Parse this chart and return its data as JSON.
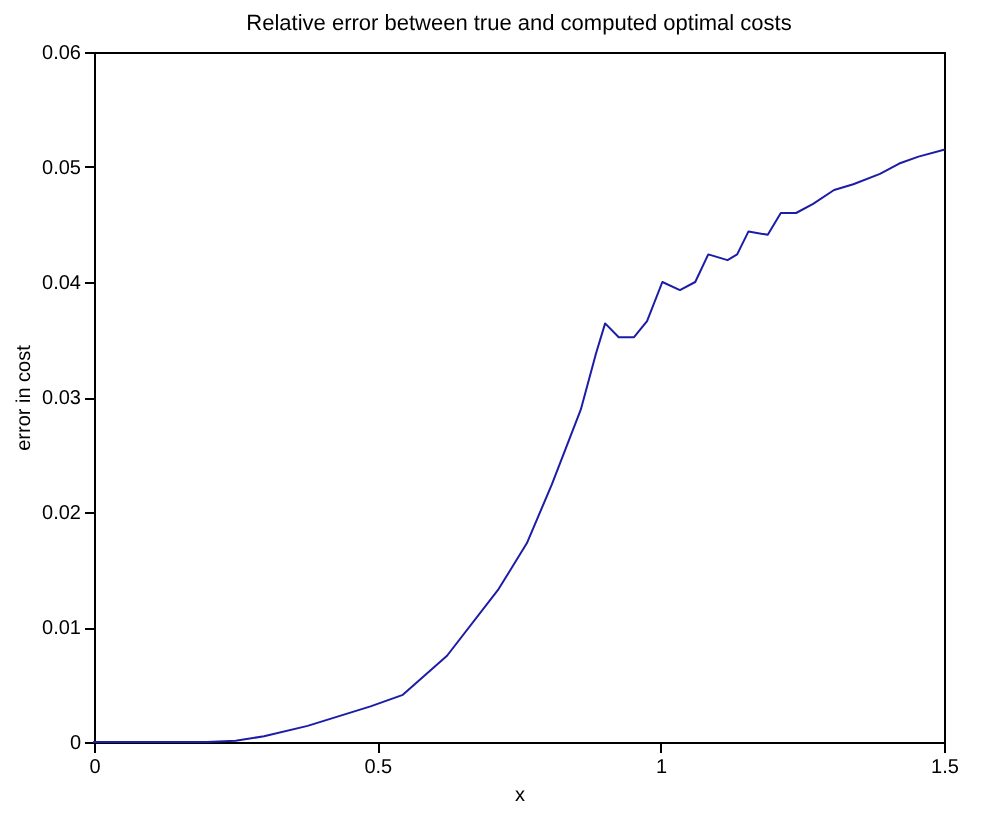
{
  "chart_data": {
    "type": "line",
    "title": "Relative error between true and computed optimal costs",
    "xlabel": "x",
    "ylabel": "error in cost",
    "x": [
      0,
      0.1,
      0.2,
      0.25,
      0.3,
      0.377,
      0.488,
      0.545,
      0.623,
      0.714,
      0.764,
      0.808,
      0.859,
      0.886,
      0.902,
      0.926,
      0.953,
      0.976,
      1.003,
      1.034,
      1.061,
      1.084,
      1.118,
      1.135,
      1.155,
      1.189,
      1.212,
      1.239,
      1.269,
      1.306,
      1.34,
      1.387,
      1.421,
      1.455,
      1.5
    ],
    "series": [
      {
        "color": "#1c1ca8",
        "values": [
          0,
          0,
          0,
          0.0001,
          0.0005,
          0.0014,
          0.0031,
          0.0041,
          0.0075,
          0.0133,
          0.0173,
          0.0224,
          0.0289,
          0.0338,
          0.0364,
          0.0352,
          0.0352,
          0.0366,
          0.04,
          0.0393,
          0.04,
          0.0424,
          0.0419,
          0.0424,
          0.0444,
          0.0441,
          0.046,
          0.046,
          0.0468,
          0.048,
          0.0485,
          0.0494,
          0.0503,
          0.0509,
          0.0515
        ]
      }
    ],
    "xlim": [
      0,
      1.5
    ],
    "xticks": [
      0,
      0.5,
      1,
      1.5
    ],
    "ylim": [
      0,
      0.06
    ],
    "yticks": [
      0,
      0.01,
      0.02,
      0.03,
      0.04,
      0.05,
      0.06
    ],
    "grid": false,
    "marker": "none",
    "line_style": "solid"
  }
}
